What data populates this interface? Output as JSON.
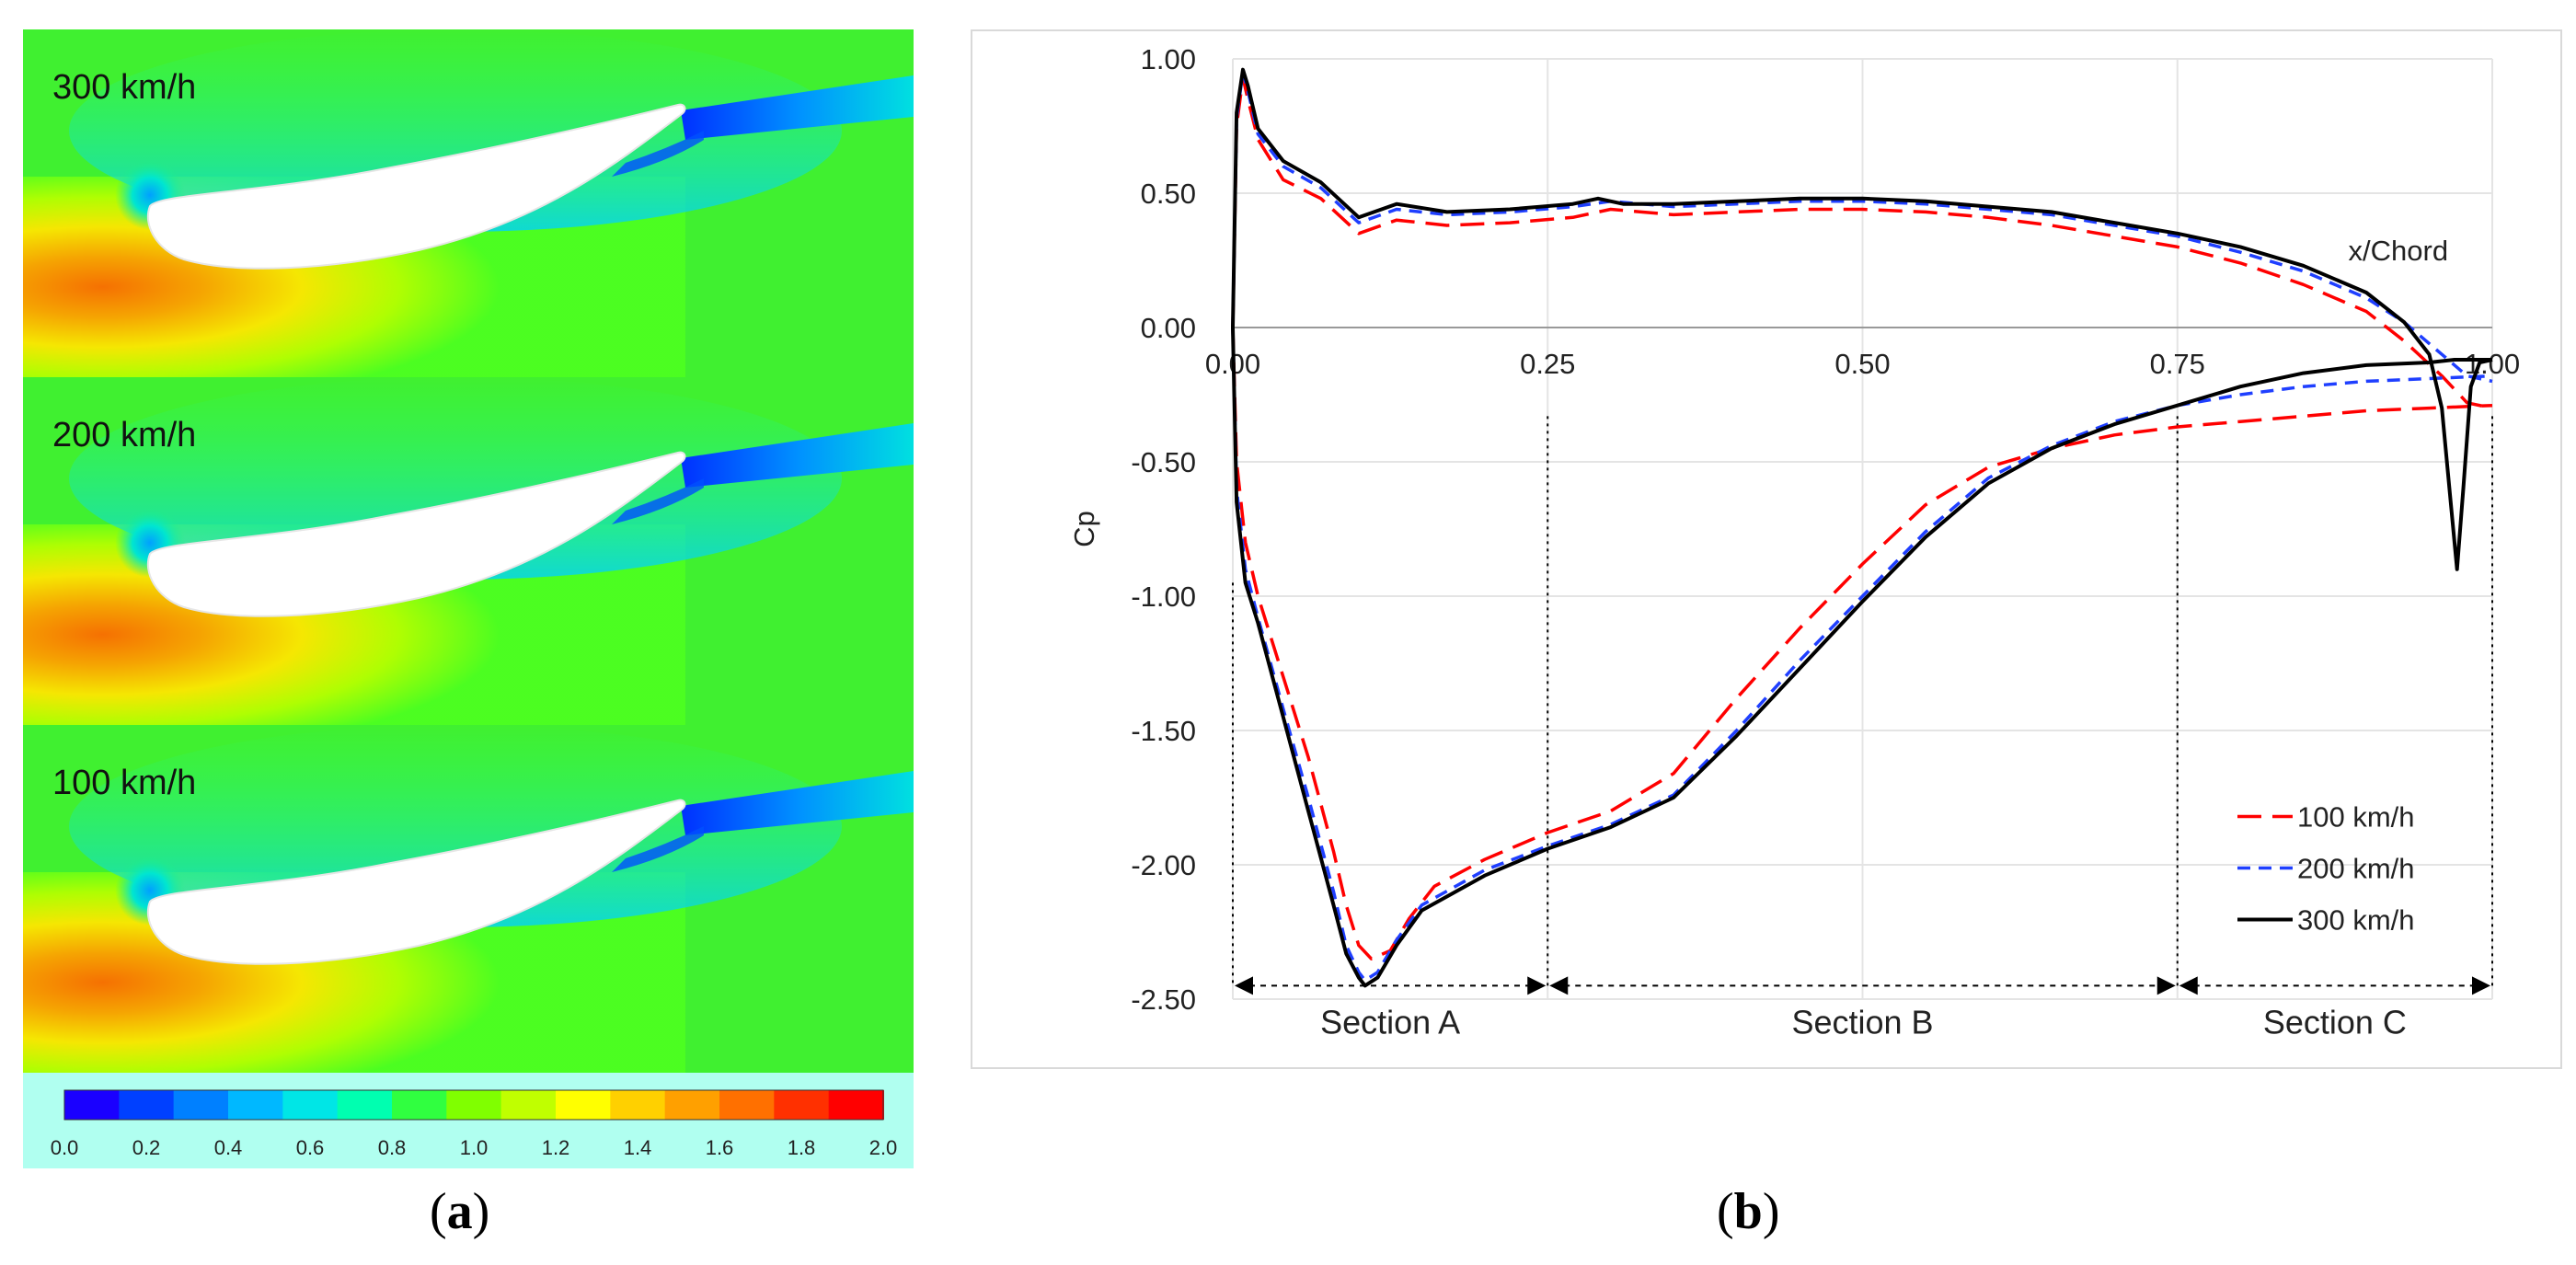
{
  "panel_a": {
    "contours": [
      {
        "label": "300 km/h"
      },
      {
        "label": "200 km/h"
      },
      {
        "label": "100 km/h"
      }
    ],
    "colorbar": {
      "ticks": [
        "0.0",
        "0.2",
        "0.4",
        "0.6",
        "0.8",
        "1.0",
        "1.2",
        "1.4",
        "1.6",
        "1.8",
        "2.0"
      ],
      "colors": [
        "#1a00ff",
        "#0040ff",
        "#0080ff",
        "#00b8ff",
        "#00e6e6",
        "#00ffb0",
        "#30ff40",
        "#80ff00",
        "#c0ff00",
        "#ffff00",
        "#ffd000",
        "#ffa000",
        "#ff7000",
        "#ff3000",
        "#ff0000"
      ]
    },
    "caption": "a"
  },
  "panel_b": {
    "caption": "b"
  },
  "chart_data": {
    "type": "line",
    "title": "",
    "xlabel": "x/Chord",
    "ylabel": "Cp",
    "xlim": [
      0,
      1
    ],
    "ylim": [
      -2.5,
      1.0
    ],
    "x_ticks": [
      "0.00",
      "0.25",
      "0.50",
      "0.75",
      "1.00"
    ],
    "x_tick_values": [
      0,
      0.25,
      0.5,
      0.75,
      1.0
    ],
    "y_ticks": [
      "1.00",
      "0.50",
      "0.00",
      "-0.50",
      "-1.00",
      "-1.50",
      "-2.00",
      "-2.50"
    ],
    "y_tick_values": [
      1.0,
      0.5,
      0.0,
      -0.5,
      -1.0,
      -1.5,
      -2.0,
      -2.5
    ],
    "grid": true,
    "legend_position": "bottom-right",
    "sections": [
      {
        "label": "Section A",
        "from": 0.0,
        "to": 0.25
      },
      {
        "label": "Section B",
        "from": 0.25,
        "to": 0.75
      },
      {
        "label": "Section C",
        "from": 0.75,
        "to": 1.0
      }
    ],
    "series": [
      {
        "name": "100 km/h",
        "color": "#ff0000",
        "dash": "long",
        "upper": [
          [
            0.0,
            0.0
          ],
          [
            0.003,
            0.75
          ],
          [
            0.008,
            0.93
          ],
          [
            0.012,
            0.85
          ],
          [
            0.02,
            0.7
          ],
          [
            0.04,
            0.55
          ],
          [
            0.07,
            0.48
          ],
          [
            0.1,
            0.35
          ],
          [
            0.13,
            0.4
          ],
          [
            0.17,
            0.38
          ],
          [
            0.22,
            0.39
          ],
          [
            0.27,
            0.41
          ],
          [
            0.3,
            0.44
          ],
          [
            0.35,
            0.42
          ],
          [
            0.4,
            0.43
          ],
          [
            0.45,
            0.44
          ],
          [
            0.5,
            0.44
          ],
          [
            0.55,
            0.43
          ],
          [
            0.6,
            0.41
          ],
          [
            0.65,
            0.38
          ],
          [
            0.7,
            0.34
          ],
          [
            0.75,
            0.3
          ],
          [
            0.8,
            0.24
          ],
          [
            0.85,
            0.16
          ],
          [
            0.9,
            0.06
          ],
          [
            0.93,
            -0.05
          ],
          [
            0.96,
            -0.18
          ],
          [
            0.98,
            -0.28
          ],
          [
            1.0,
            -0.3
          ]
        ],
        "lower": [
          [
            0.0,
            0.0
          ],
          [
            0.003,
            -0.5
          ],
          [
            0.01,
            -0.8
          ],
          [
            0.02,
            -1.0
          ],
          [
            0.04,
            -1.3
          ],
          [
            0.06,
            -1.6
          ],
          [
            0.08,
            -1.95
          ],
          [
            0.09,
            -2.15
          ],
          [
            0.1,
            -2.3
          ],
          [
            0.11,
            -2.35
          ],
          [
            0.125,
            -2.32
          ],
          [
            0.14,
            -2.2
          ],
          [
            0.16,
            -2.08
          ],
          [
            0.2,
            -1.98
          ],
          [
            0.25,
            -1.88
          ],
          [
            0.3,
            -1.8
          ],
          [
            0.35,
            -1.66
          ],
          [
            0.4,
            -1.38
          ],
          [
            0.45,
            -1.12
          ],
          [
            0.5,
            -0.88
          ],
          [
            0.55,
            -0.66
          ],
          [
            0.6,
            -0.52
          ],
          [
            0.65,
            -0.45
          ],
          [
            0.7,
            -0.4
          ],
          [
            0.75,
            -0.37
          ],
          [
            0.8,
            -0.35
          ],
          [
            0.85,
            -0.33
          ],
          [
            0.9,
            -0.31
          ],
          [
            0.95,
            -0.3
          ],
          [
            1.0,
            -0.29
          ]
        ]
      },
      {
        "name": "200 km/h",
        "color": "#1f3fff",
        "dash": "short",
        "upper": [
          [
            0.0,
            0.0
          ],
          [
            0.003,
            0.78
          ],
          [
            0.008,
            0.95
          ],
          [
            0.012,
            0.88
          ],
          [
            0.02,
            0.72
          ],
          [
            0.04,
            0.6
          ],
          [
            0.07,
            0.52
          ],
          [
            0.1,
            0.39
          ],
          [
            0.13,
            0.44
          ],
          [
            0.17,
            0.42
          ],
          [
            0.22,
            0.43
          ],
          [
            0.27,
            0.45
          ],
          [
            0.3,
            0.47
          ],
          [
            0.35,
            0.45
          ],
          [
            0.4,
            0.46
          ],
          [
            0.45,
            0.47
          ],
          [
            0.5,
            0.47
          ],
          [
            0.55,
            0.46
          ],
          [
            0.6,
            0.44
          ],
          [
            0.65,
            0.42
          ],
          [
            0.7,
            0.38
          ],
          [
            0.75,
            0.34
          ],
          [
            0.8,
            0.28
          ],
          [
            0.85,
            0.21
          ],
          [
            0.9,
            0.11
          ],
          [
            0.93,
            0.02
          ],
          [
            0.96,
            -0.1
          ],
          [
            0.98,
            -0.18
          ],
          [
            1.0,
            -0.2
          ]
        ],
        "lower": [
          [
            0.0,
            0.0
          ],
          [
            0.003,
            -0.6
          ],
          [
            0.01,
            -0.9
          ],
          [
            0.02,
            -1.08
          ],
          [
            0.04,
            -1.42
          ],
          [
            0.06,
            -1.75
          ],
          [
            0.08,
            -2.1
          ],
          [
            0.09,
            -2.3
          ],
          [
            0.1,
            -2.4
          ],
          [
            0.105,
            -2.43
          ],
          [
            0.115,
            -2.4
          ],
          [
            0.13,
            -2.28
          ],
          [
            0.15,
            -2.15
          ],
          [
            0.2,
            -2.02
          ],
          [
            0.25,
            -1.93
          ],
          [
            0.3,
            -1.85
          ],
          [
            0.35,
            -1.74
          ],
          [
            0.4,
            -1.5
          ],
          [
            0.45,
            -1.24
          ],
          [
            0.5,
            -1.0
          ],
          [
            0.55,
            -0.76
          ],
          [
            0.6,
            -0.56
          ],
          [
            0.65,
            -0.44
          ],
          [
            0.7,
            -0.35
          ],
          [
            0.75,
            -0.29
          ],
          [
            0.8,
            -0.25
          ],
          [
            0.85,
            -0.22
          ],
          [
            0.9,
            -0.2
          ],
          [
            0.95,
            -0.19
          ],
          [
            1.0,
            -0.18
          ]
        ]
      },
      {
        "name": "300 km/h",
        "color": "#000000",
        "dash": "solid",
        "upper": [
          [
            0.0,
            0.0
          ],
          [
            0.003,
            0.8
          ],
          [
            0.008,
            0.96
          ],
          [
            0.012,
            0.9
          ],
          [
            0.02,
            0.74
          ],
          [
            0.04,
            0.62
          ],
          [
            0.07,
            0.54
          ],
          [
            0.1,
            0.41
          ],
          [
            0.13,
            0.46
          ],
          [
            0.17,
            0.43
          ],
          [
            0.22,
            0.44
          ],
          [
            0.27,
            0.46
          ],
          [
            0.29,
            0.48
          ],
          [
            0.31,
            0.46
          ],
          [
            0.35,
            0.46
          ],
          [
            0.4,
            0.47
          ],
          [
            0.45,
            0.48
          ],
          [
            0.5,
            0.48
          ],
          [
            0.55,
            0.47
          ],
          [
            0.6,
            0.45
          ],
          [
            0.65,
            0.43
          ],
          [
            0.7,
            0.39
          ],
          [
            0.75,
            0.35
          ],
          [
            0.8,
            0.3
          ],
          [
            0.85,
            0.23
          ],
          [
            0.9,
            0.13
          ],
          [
            0.93,
            0.02
          ],
          [
            0.95,
            -0.1
          ],
          [
            0.96,
            -0.3
          ],
          [
            0.967,
            -0.65
          ],
          [
            0.972,
            -0.9
          ],
          [
            0.977,
            -0.6
          ],
          [
            0.983,
            -0.22
          ],
          [
            0.99,
            -0.13
          ],
          [
            1.0,
            -0.12
          ]
        ],
        "lower": [
          [
            0.0,
            0.0
          ],
          [
            0.003,
            -0.65
          ],
          [
            0.01,
            -0.95
          ],
          [
            0.02,
            -1.1
          ],
          [
            0.04,
            -1.45
          ],
          [
            0.06,
            -1.8
          ],
          [
            0.08,
            -2.15
          ],
          [
            0.09,
            -2.33
          ],
          [
            0.1,
            -2.42
          ],
          [
            0.105,
            -2.45
          ],
          [
            0.115,
            -2.42
          ],
          [
            0.13,
            -2.3
          ],
          [
            0.15,
            -2.17
          ],
          [
            0.2,
            -2.04
          ],
          [
            0.25,
            -1.94
          ],
          [
            0.3,
            -1.86
          ],
          [
            0.35,
            -1.75
          ],
          [
            0.4,
            -1.52
          ],
          [
            0.45,
            -1.27
          ],
          [
            0.5,
            -1.02
          ],
          [
            0.55,
            -0.78
          ],
          [
            0.6,
            -0.58
          ],
          [
            0.65,
            -0.45
          ],
          [
            0.7,
            -0.36
          ],
          [
            0.75,
            -0.29
          ],
          [
            0.8,
            -0.22
          ],
          [
            0.85,
            -0.17
          ],
          [
            0.9,
            -0.14
          ],
          [
            0.95,
            -0.13
          ],
          [
            0.97,
            -0.12
          ],
          [
            1.0,
            -0.12
          ]
        ]
      }
    ]
  }
}
